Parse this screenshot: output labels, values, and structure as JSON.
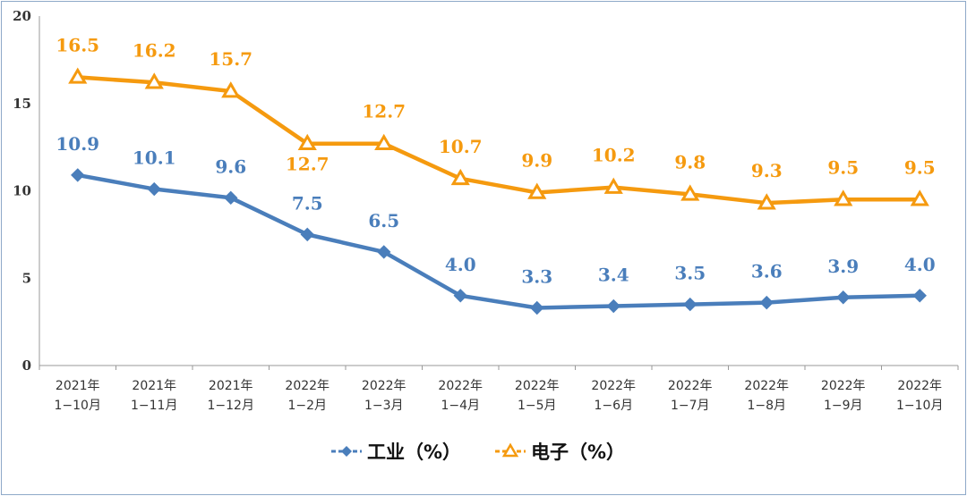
{
  "chart_data": {
    "type": "line",
    "categories": [
      [
        "2021年",
        "1−10月"
      ],
      [
        "2021年",
        "1−11月"
      ],
      [
        "2021年",
        "1−12月"
      ],
      [
        "2022年",
        "1−2月"
      ],
      [
        "2022年",
        "1−3月"
      ],
      [
        "2022年",
        "1−4月"
      ],
      [
        "2022年",
        "1−5月"
      ],
      [
        "2022年",
        "1−6月"
      ],
      [
        "2022年",
        "1−7月"
      ],
      [
        "2022年",
        "1−8月"
      ],
      [
        "2022年",
        "1−9月"
      ],
      [
        "2022年",
        "1−10月"
      ]
    ],
    "series": [
      {
        "name": "工业（%）",
        "values": [
          10.9,
          10.1,
          9.6,
          7.5,
          6.5,
          4.0,
          3.3,
          3.4,
          3.5,
          3.6,
          3.9,
          4.0
        ],
        "labels": [
          "10.9",
          "10.1",
          "9.6",
          "7.5",
          "6.5",
          "4.0",
          "3.3",
          "3.4",
          "3.5",
          "3.6",
          "3.9",
          "4.0"
        ],
        "color": "#4a7ebb",
        "marker": "diamond"
      },
      {
        "name": "电子（%）",
        "values": [
          16.5,
          16.2,
          15.7,
          12.7,
          12.7,
          10.7,
          9.9,
          10.2,
          9.8,
          9.3,
          9.5,
          9.5
        ],
        "labels": [
          "16.5",
          "16.2",
          "15.7",
          "12.7",
          "12.7",
          "10.7",
          "9.9",
          "10.2",
          "9.8",
          "9.3",
          "9.5",
          "9.5"
        ],
        "color": "#f59a0f",
        "marker": "triangle"
      }
    ],
    "ylim": [
      0,
      20
    ],
    "yticks": [
      "0",
      "5",
      "10",
      "15",
      "20"
    ],
    "grid": false,
    "legend": "bottom"
  }
}
